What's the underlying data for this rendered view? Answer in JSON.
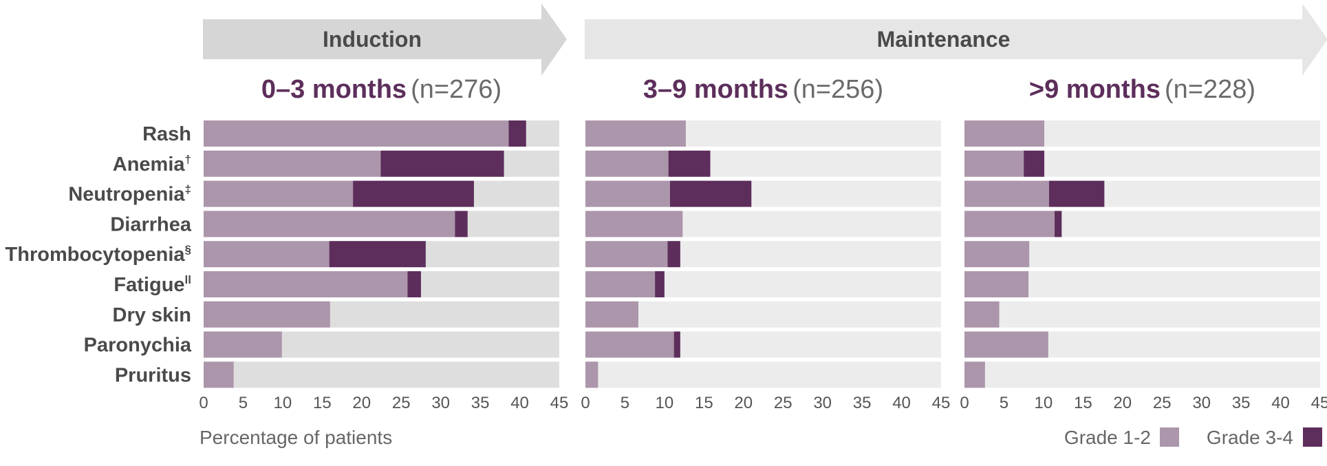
{
  "chart_data": {
    "type": "bar",
    "stacked": true,
    "orientation": "horizontal",
    "phases": [
      {
        "label": "Induction",
        "panels": [
          0
        ]
      },
      {
        "label": "Maintenance",
        "panels": [
          1,
          2
        ]
      }
    ],
    "categories": [
      {
        "name": "Rash",
        "sup": ""
      },
      {
        "name": "Anemia",
        "sup": "†"
      },
      {
        "name": "Neutropenia",
        "sup": "‡"
      },
      {
        "name": "Diarrhea",
        "sup": ""
      },
      {
        "name": "Thrombocytopenia",
        "sup": "§"
      },
      {
        "name": "Fatigue",
        "sup": "ll"
      },
      {
        "name": "Dry skin",
        "sup": ""
      },
      {
        "name": "Paronychia",
        "sup": ""
      },
      {
        "name": "Pruritus",
        "sup": ""
      }
    ],
    "panels": [
      {
        "title": "0–3 months",
        "n_label": "(n=276)",
        "series": [
          {
            "name": "Grade 1-2",
            "values": [
              38.6,
              22.4,
              18.9,
              31.8,
              15.9,
              25.8,
              16.0,
              9.9,
              3.8
            ]
          },
          {
            "name": "Grade 3-4",
            "values": [
              2.2,
              15.6,
              15.3,
              1.6,
              12.2,
              1.7,
              0,
              0,
              0
            ]
          }
        ]
      },
      {
        "title": "3–9 months",
        "n_label": "(n=256)",
        "series": [
          {
            "name": "Grade 1-2",
            "values": [
              12.7,
              10.5,
              10.7,
              12.3,
              10.4,
              8.8,
              6.7,
              11.2,
              1.6
            ]
          },
          {
            "name": "Grade 3-4",
            "values": [
              0,
              5.3,
              10.3,
              0,
              1.6,
              1.2,
              0,
              0.8,
              0
            ]
          }
        ]
      },
      {
        "title": ">9 months",
        "n_label": "(n=228)",
        "series": [
          {
            "name": "Grade 1-2",
            "values": [
              10.1,
              7.5,
              10.7,
              11.4,
              8.2,
              8.1,
              4.4,
              10.6,
              2.6
            ]
          },
          {
            "name": "Grade 3-4",
            "values": [
              0,
              2.6,
              7.0,
              0.9,
              0,
              0,
              0,
              0,
              0
            ]
          }
        ]
      }
    ],
    "xlim": [
      0,
      45
    ],
    "xticks": [
      0,
      5,
      10,
      15,
      20,
      25,
      30,
      35,
      40,
      45
    ],
    "xlabel": "Percentage of patients",
    "ylabel": "",
    "legend": {
      "placement": "bottom-right",
      "items": [
        {
          "label": "Grade 1-2",
          "color": "#ac96ab"
        },
        {
          "label": "Grade 3-4",
          "color": "#5d2e5c"
        }
      ]
    },
    "grid": false
  },
  "colors": {
    "grade12": "#ac96ab",
    "grade34": "#5d2e5c",
    "track_induction": "#dedede",
    "track_maintenance": "#ececec",
    "arrow_induction": "#d6d6d6",
    "arrow_maintenance": "#e6e6e6",
    "title_accent": "#5d2e5c",
    "title_n": "#6a6a6a",
    "text": "#4a4a4a"
  }
}
